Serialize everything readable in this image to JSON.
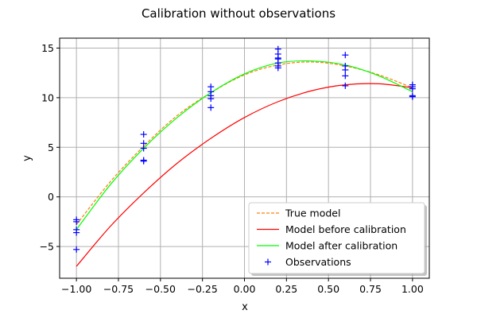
{
  "chart_data": {
    "type": "line",
    "title": "Calibration without observations",
    "xlabel": "x",
    "ylabel": "y",
    "xlim": [
      -1.1,
      1.1
    ],
    "ylim": [
      -8.2,
      16
    ],
    "xticks": [
      -1.0,
      -0.75,
      -0.5,
      -0.25,
      0.0,
      0.25,
      0.5,
      0.75,
      1.0
    ],
    "xtick_labels": [
      "−1.00",
      "−0.75",
      "−0.50",
      "−0.25",
      "0.00",
      "0.25",
      "0.50",
      "0.75",
      "1.00"
    ],
    "yticks": [
      -5,
      0,
      5,
      10,
      15
    ],
    "ytick_labels": [
      "−5",
      "0",
      "5",
      "10",
      "15"
    ],
    "grid": true,
    "legend_position": "lower-right",
    "series": [
      {
        "name": "True model",
        "kind": "line",
        "style": "dashed",
        "color": "#ff7f0e",
        "x": [
          -1.0,
          -0.8,
          -0.6,
          -0.4,
          -0.2,
          0.0,
          0.2,
          0.4,
          0.6,
          0.8,
          1.0
        ],
        "y": [
          -2.8,
          1.5,
          5.1,
          8.2,
          10.5,
          12.3,
          13.3,
          13.6,
          13.2,
          12.3,
          11.0
        ]
      },
      {
        "name": "Model before calibration",
        "kind": "line",
        "style": "solid",
        "color": "#ff0000",
        "x": [
          -1.0,
          -0.8,
          -0.6,
          -0.4,
          -0.2,
          0.0,
          0.2,
          0.4,
          0.6,
          0.8,
          1.0
        ],
        "y": [
          -7.0,
          -3.0,
          0.4,
          3.4,
          5.9,
          8.0,
          9.6,
          10.7,
          11.3,
          11.4,
          11.0
        ]
      },
      {
        "name": "Model after calibration",
        "kind": "line",
        "style": "solid",
        "color": "#00ff00",
        "x": [
          -1.0,
          -0.8,
          -0.6,
          -0.4,
          -0.2,
          0.0,
          0.2,
          0.4,
          0.6,
          0.8,
          1.0
        ],
        "y": [
          -3.3,
          1.2,
          4.9,
          8.0,
          10.5,
          12.4,
          13.5,
          13.7,
          13.3,
          12.2,
          10.6
        ]
      },
      {
        "name": "Observations",
        "kind": "scatter",
        "marker": "plus",
        "color": "#0000ff",
        "x": [
          -1.0,
          -1.0,
          -1.0,
          -1.0,
          -1.0,
          -0.6,
          -0.6,
          -0.6,
          -0.6,
          -0.6,
          -0.2,
          -0.2,
          -0.2,
          -0.2,
          -0.2,
          0.2,
          0.2,
          0.2,
          0.2,
          0.2,
          0.2,
          0.2,
          0.6,
          0.6,
          0.6,
          0.6,
          0.6,
          1.0,
          1.0,
          1.0,
          1.0,
          1.0
        ],
        "y": [
          -2.3,
          -2.5,
          -3.3,
          -3.6,
          -5.3,
          6.3,
          5.4,
          4.9,
          3.7,
          3.6,
          11.1,
          10.6,
          9.9,
          9.0,
          10.2,
          14.9,
          14.4,
          13.9,
          13.5,
          13.2,
          13.0,
          14.0,
          14.3,
          13.2,
          12.8,
          12.2,
          11.2,
          11.3,
          11.1,
          10.9,
          10.2,
          10.1
        ]
      }
    ]
  }
}
